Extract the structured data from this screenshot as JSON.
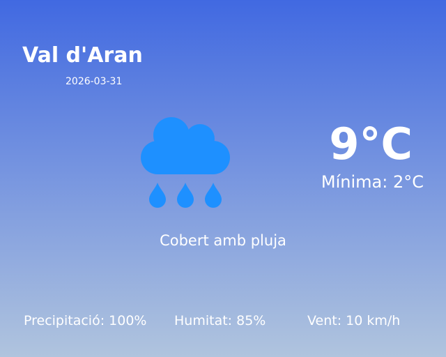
{
  "location": {
    "city": "Val d'Aran",
    "date": "2026-03-31"
  },
  "current": {
    "icon": "rain-cloud-icon",
    "icon_color": "#1e90ff",
    "temperature": "9°C",
    "minimum": "Mínima: 2°C",
    "condition": "Cobert amb pluja"
  },
  "stats": {
    "precipitation": "Precipitació: 100%",
    "humidity": "Humitat: 85%",
    "wind": "Vent: 10 km/h"
  },
  "colors": {
    "gradient_top": "#4169e1",
    "gradient_bottom": "#b0c4de"
  }
}
